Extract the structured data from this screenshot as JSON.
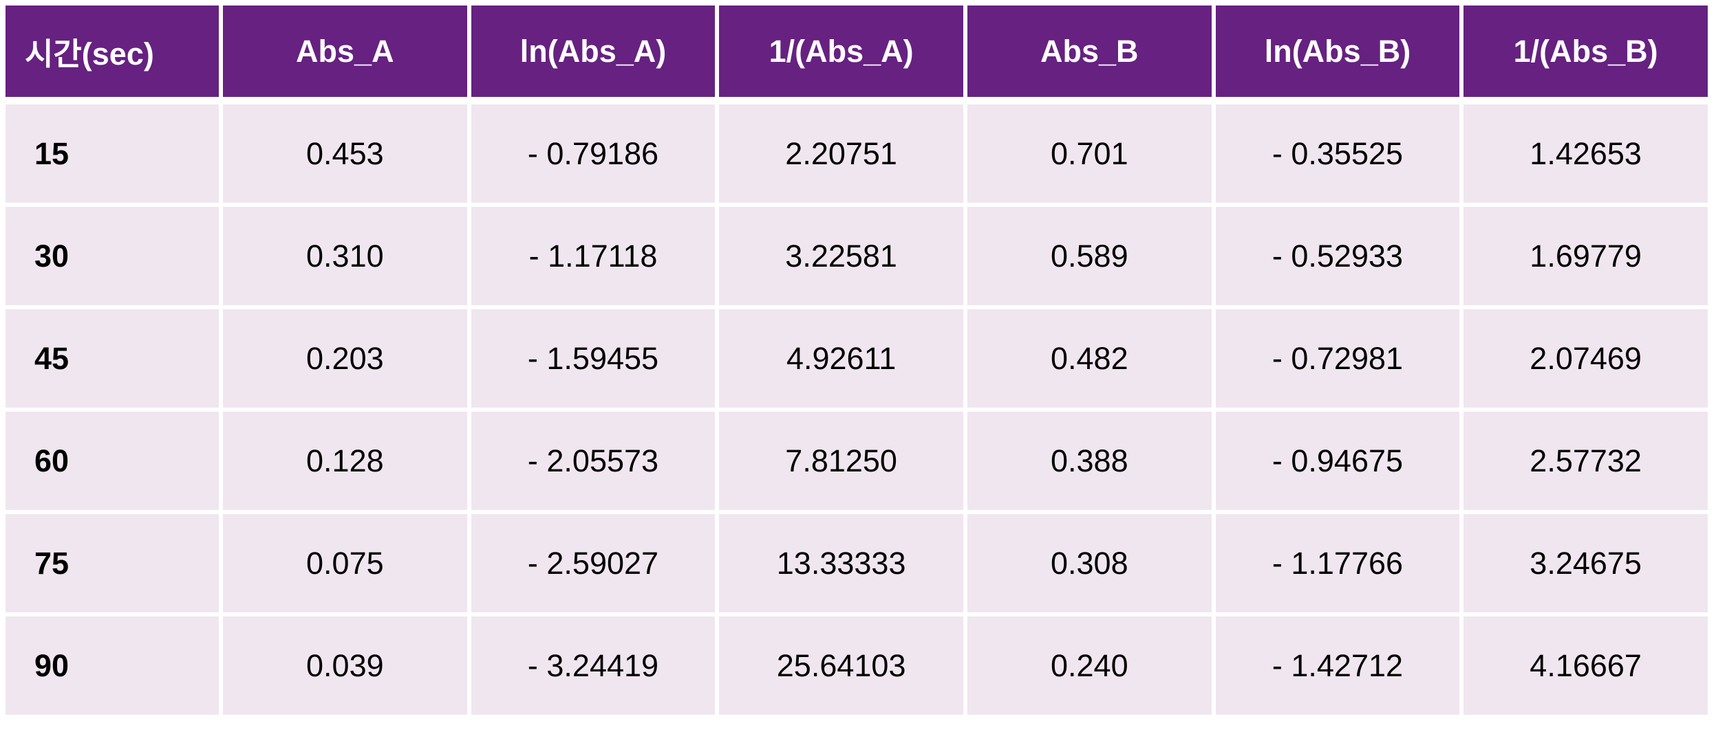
{
  "table": {
    "columns": [
      "시간(sec)",
      "Abs_A",
      "ln(Abs_A)",
      "1/(Abs_A)",
      "Abs_B",
      "ln(Abs_B)",
      "1/(Abs_B)"
    ],
    "rows": [
      [
        "15",
        "0.453",
        "- 0.79186",
        "2.20751",
        "0.701",
        "- 0.35525",
        "1.42653"
      ],
      [
        "30",
        "0.310",
        "- 1.17118",
        "3.22581",
        "0.589",
        "- 0.52933",
        "1.69779"
      ],
      [
        "45",
        "0.203",
        "- 1.59455",
        "4.92611",
        "0.482",
        "- 0.72981",
        "2.07469"
      ],
      [
        "60",
        "0.128",
        "- 2.05573",
        "7.81250",
        "0.388",
        "- 0.94675",
        "2.57732"
      ],
      [
        "75",
        "0.075",
        "- 2.59027",
        "13.33333",
        "0.308",
        "- 1.17766",
        "3.24675"
      ],
      [
        "90",
        "0.039",
        "- 3.24419",
        "25.64103",
        "0.240",
        "- 1.42712",
        "4.16667"
      ]
    ]
  },
  "colors": {
    "header_bg": "#662181",
    "header_text": "#FFFFFF",
    "row_bg": "#F0E6EF",
    "body_text": "#000000",
    "gap": "#FFFFFF"
  },
  "chart_data": {
    "type": "table",
    "title": "",
    "columns": [
      "시간(sec)",
      "Abs_A",
      "ln(Abs_A)",
      "1/(Abs_A)",
      "Abs_B",
      "ln(Abs_B)",
      "1/(Abs_B)"
    ],
    "rows": [
      [
        15,
        0.453,
        -0.79186,
        2.20751,
        0.701,
        -0.35525,
        1.42653
      ],
      [
        30,
        0.31,
        -1.17118,
        3.22581,
        0.589,
        -0.52933,
        1.69779
      ],
      [
        45,
        0.203,
        -1.59455,
        4.92611,
        0.482,
        -0.72981,
        2.07469
      ],
      [
        60,
        0.128,
        -2.05573,
        7.8125,
        0.388,
        -0.94675,
        2.57732
      ],
      [
        75,
        0.075,
        -2.59027,
        13.33333,
        0.308,
        -1.17766,
        3.24675
      ],
      [
        90,
        0.039,
        -3.24419,
        25.64103,
        0.24,
        -1.42712,
        4.16667
      ]
    ],
    "series_description": {
      "x": "time (sec)",
      "series": [
        "Abs_A",
        "ln(Abs_A)",
        "1/(Abs_A)",
        "Abs_B",
        "ln(Abs_B)",
        "1/(Abs_B)"
      ]
    }
  }
}
